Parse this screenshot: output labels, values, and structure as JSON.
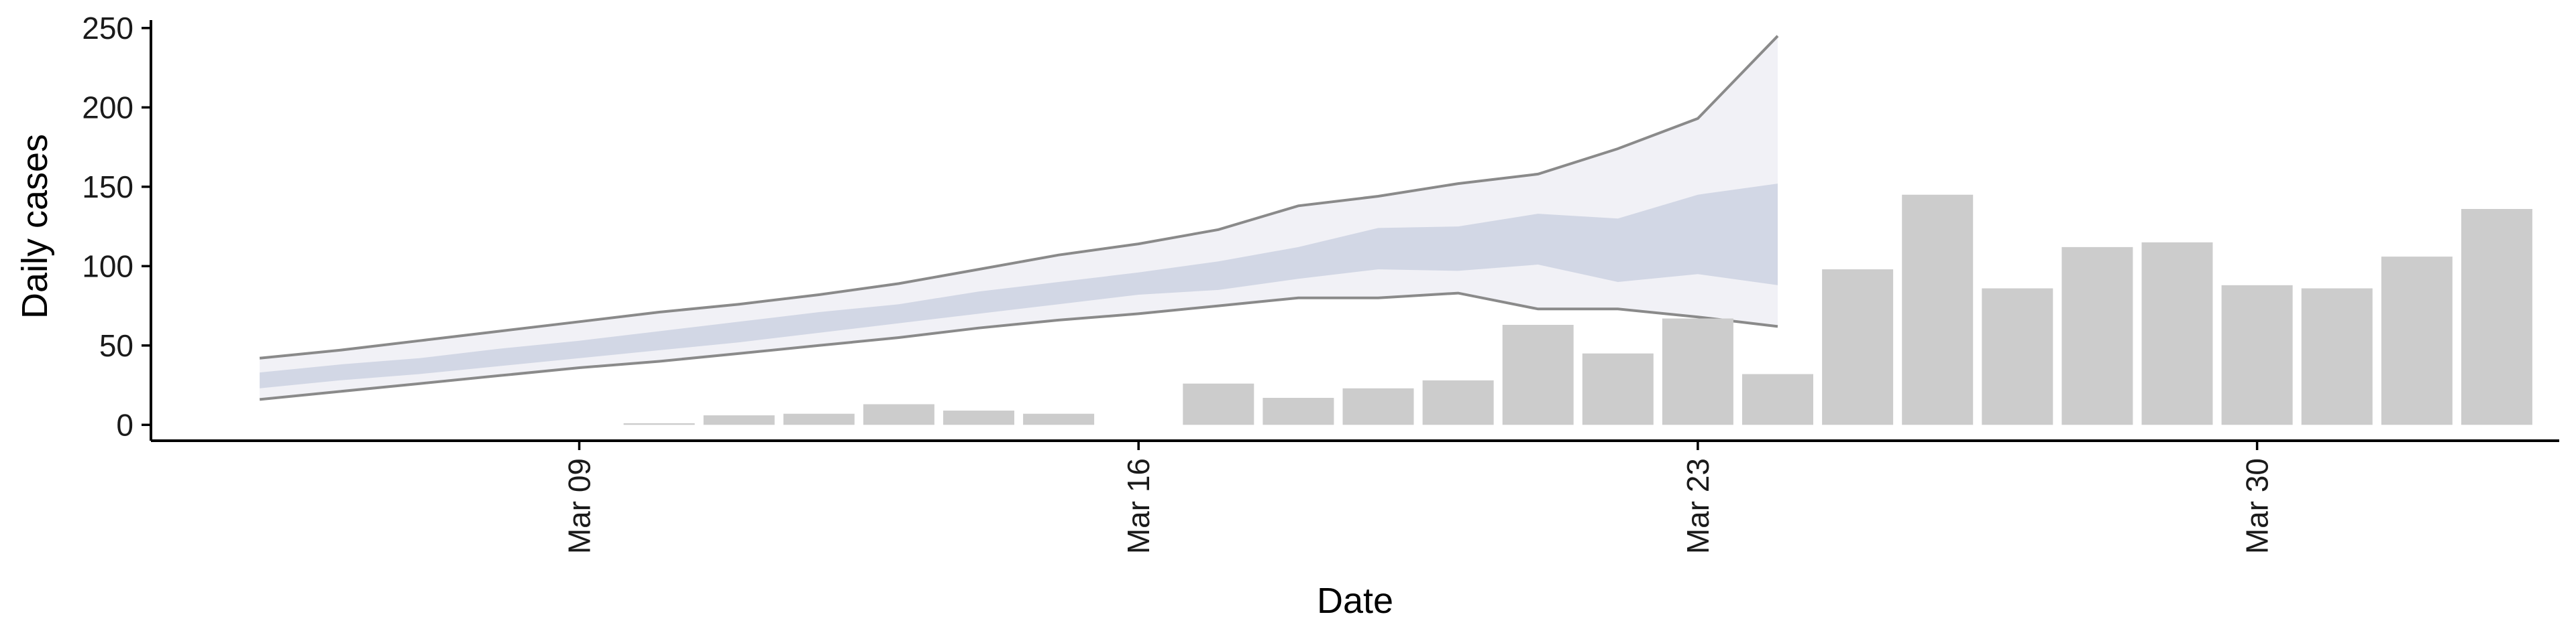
{
  "chart_data": {
    "type": "bar",
    "title": "",
    "xlabel": "Date",
    "ylabel": "Daily cases",
    "x_ticks": [
      "Mar 09",
      "Mar 16",
      "Mar 23",
      "Mar 30"
    ],
    "y_ticks": [
      "0",
      "50",
      "100",
      "150",
      "200",
      "250"
    ],
    "ylim": [
      -10,
      255
    ],
    "x_range": [
      "2020-03-04",
      "2020-04-03"
    ],
    "grid": false,
    "legend": "none",
    "bars": {
      "dates": [
        "2020-03-10",
        "2020-03-11",
        "2020-03-12",
        "2020-03-13",
        "2020-03-14",
        "2020-03-15",
        "2020-03-17",
        "2020-03-18",
        "2020-03-19",
        "2020-03-20",
        "2020-03-21",
        "2020-03-22",
        "2020-03-23",
        "2020-03-24",
        "2020-03-25",
        "2020-03-26",
        "2020-03-27",
        "2020-03-28",
        "2020-03-29",
        "2020-03-30",
        "2020-03-31",
        "2020-04-01",
        "2020-04-02"
      ],
      "values": [
        1,
        6,
        7,
        13,
        9,
        7,
        26,
        17,
        23,
        28,
        63,
        45,
        67,
        32,
        98,
        145,
        86,
        112,
        115,
        88,
        86,
        106,
        136
      ],
      "color": "#cccccc"
    },
    "forecast": {
      "dates": [
        "2020-03-05",
        "2020-03-06",
        "2020-03-07",
        "2020-03-08",
        "2020-03-09",
        "2020-03-10",
        "2020-03-11",
        "2020-03-12",
        "2020-03-13",
        "2020-03-14",
        "2020-03-15",
        "2020-03-16",
        "2020-03-17",
        "2020-03-18",
        "2020-03-19",
        "2020-03-20",
        "2020-03-21",
        "2020-03-22",
        "2020-03-23",
        "2020-03-24"
      ],
      "upper_90": [
        42,
        47,
        53,
        59,
        65,
        71,
        76,
        82,
        89,
        98,
        107,
        114,
        123,
        138,
        144,
        152,
        158,
        174,
        193,
        245
      ],
      "lower_90": [
        16,
        21,
        26,
        31,
        36,
        40,
        45,
        50,
        55,
        61,
        66,
        70,
        75,
        80,
        80,
        83,
        73,
        73,
        68,
        62
      ],
      "upper_50": [
        33,
        38,
        42,
        48,
        53,
        59,
        65,
        71,
        76,
        84,
        90,
        96,
        103,
        112,
        124,
        125,
        133,
        130,
        145,
        152
      ],
      "lower_50": [
        23,
        28,
        32,
        37,
        42,
        47,
        52,
        58,
        64,
        70,
        76,
        82,
        85,
        92,
        98,
        97,
        101,
        90,
        95,
        88
      ],
      "band_colors": {
        "outer": "#f1f1f6",
        "inner": "#cdd2e2",
        "outer_edge": "#8a8a8a"
      }
    }
  }
}
